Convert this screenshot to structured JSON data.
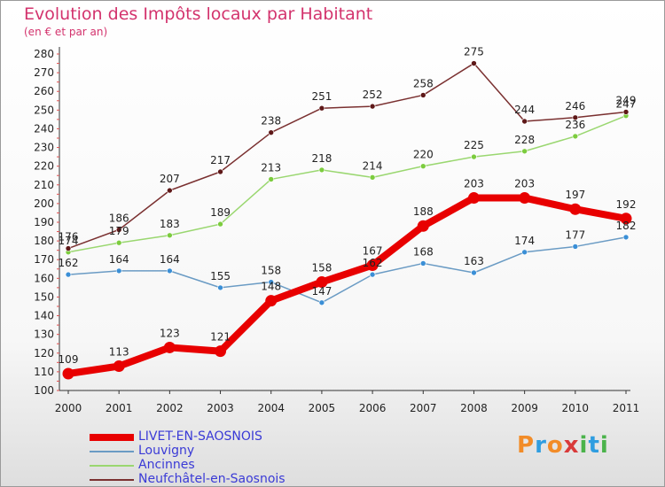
{
  "header": {
    "title": "Evolution des Impôts locaux par Habitant",
    "subtitle": "(en € et par an)"
  },
  "logo": {
    "letters": [
      {
        "ch": "P",
        "color": "#f28c28"
      },
      {
        "ch": "r",
        "color": "#2f9de0"
      },
      {
        "ch": "o",
        "color": "#f28c28"
      },
      {
        "ch": "x",
        "color": "#d93a3a"
      },
      {
        "ch": "i",
        "color": "#4bb34b"
      },
      {
        "ch": "t",
        "color": "#2f9de0"
      },
      {
        "ch": "i",
        "color": "#4bb34b"
      }
    ]
  },
  "chart_data": {
    "type": "line",
    "title": "Evolution des Impôts locaux par Habitant",
    "xlabel": "",
    "ylabel": "(en € et par an)",
    "x": [
      "2000",
      "2001",
      "2002",
      "2003",
      "2004",
      "2005",
      "2006",
      "2007",
      "2008",
      "2009",
      "2010",
      "2011"
    ],
    "ylim": [
      100,
      280
    ],
    "ystep": 10,
    "grid": false,
    "legend_position": "bottom-left",
    "series": [
      {
        "name": "LIVET-EN-SAOSNOIS",
        "color": "#e80000",
        "marker": "#e80000",
        "width": "heavy",
        "values": [
          109,
          113,
          123,
          121,
          148,
          158,
          167,
          188,
          203,
          203,
          197,
          192
        ]
      },
      {
        "name": "Louvigny",
        "color": "#6a9bc4",
        "marker": "#3b8fd6",
        "width": "thin",
        "values": [
          162,
          164,
          164,
          155,
          158,
          147,
          162,
          168,
          163,
          174,
          177,
          182
        ]
      },
      {
        "name": "Ancinnes",
        "color": "#9ad770",
        "marker": "#7ccc3e",
        "width": "thin",
        "values": [
          174,
          179,
          183,
          189,
          213,
          218,
          214,
          220,
          225,
          228,
          236,
          247
        ]
      },
      {
        "name": "Neufchâtel-en-Saosnois",
        "color": "#7a3030",
        "marker": "#5e1818",
        "width": "thin",
        "values": [
          176,
          186,
          207,
          217,
          238,
          251,
          252,
          258,
          275,
          244,
          246,
          249
        ]
      }
    ]
  }
}
